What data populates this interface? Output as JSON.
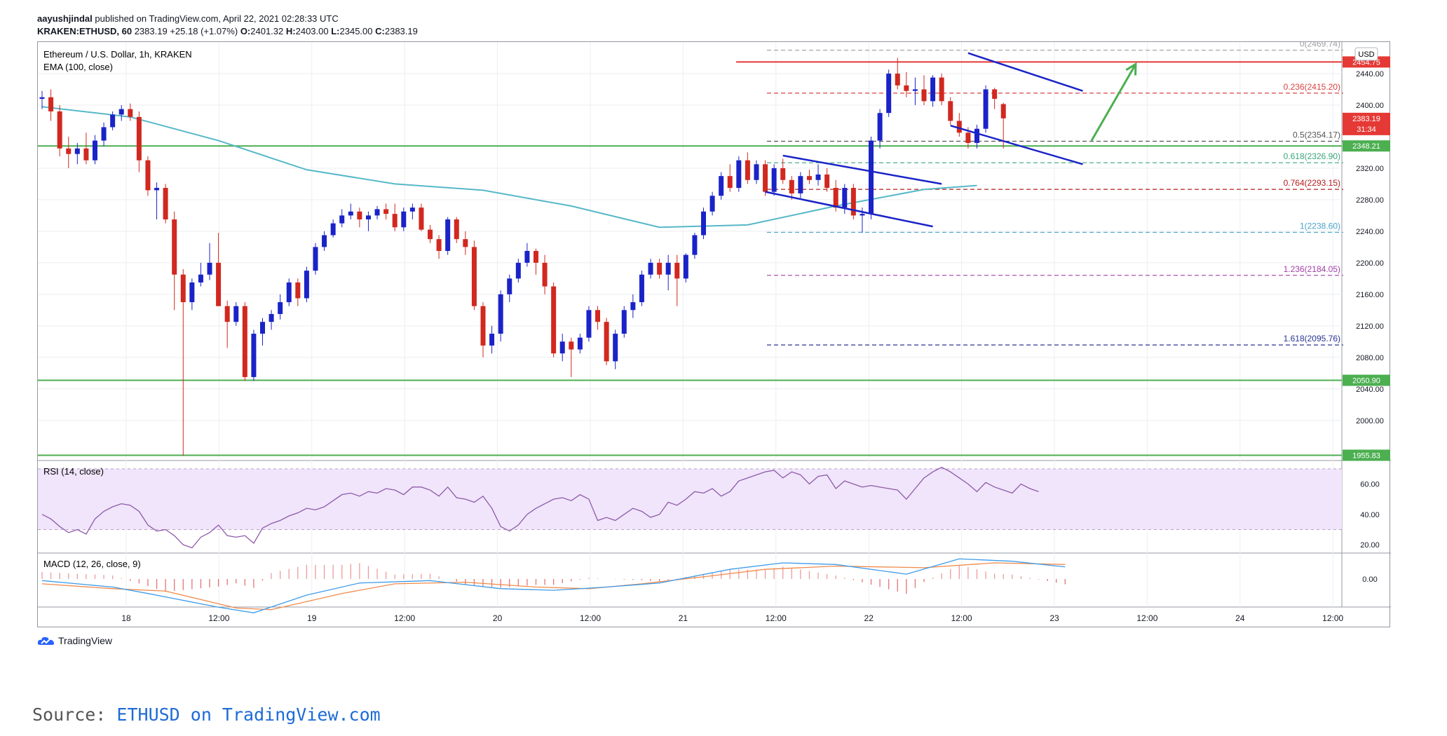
{
  "header": {
    "author": "aayushjindal",
    "published": "published on TradingView.com, April 22, 2021 02:28:33 UTC",
    "symbol": "KRAKEN:ETHUSD, 60",
    "last": "2383.19",
    "change": "+25.18 (+1.07%)",
    "o_label": "O:",
    "o": "2401.32",
    "h_label": "H:",
    "h": "2403.00",
    "l_label": "L:",
    "l": "2345.00",
    "c_label": "C:",
    "c": "2383.19"
  },
  "legend": {
    "title": "Ethereum / U.S. Dollar, 1h, KRAKEN",
    "ema": "EMA (100, close)",
    "rsi": "RSI (14, close)",
    "macd": "MACD (12, 26, close, 9)"
  },
  "currency_badge": "USD",
  "footer": {
    "brand": "TradingView",
    "source_prefix": "Source:",
    "source_link": "ETHUSD on TradingView.com"
  },
  "colors": {
    "up": "#1a23c7",
    "down": "#d1281f",
    "ema": "#56b8c8",
    "support": "#4caf50",
    "resistance": "#e53935",
    "channel": "#1a23c7",
    "arrow": "#4caf50",
    "rsi": "#8e5aa8",
    "macd": "#3d9be9",
    "signal": "#f08a4b"
  },
  "chart_data": {
    "type": "candlestick",
    "timeframe": "1h",
    "x_tick_labels": [
      "18",
      "12:00",
      "19",
      "12:00",
      "20",
      "12:00",
      "21",
      "12:00",
      "22",
      "12:00",
      "23",
      "12:00",
      "24",
      "12:00"
    ],
    "y_tick_labels": [
      "2440.00",
      "2400.00",
      "2320.00",
      "2280.00",
      "2240.00",
      "2200.00",
      "2160.00",
      "2120.00",
      "2080.00",
      "2040.00",
      "2000.00"
    ],
    "ylim": [
      1950,
      2480
    ],
    "price_tags": [
      {
        "label": "2454.75",
        "price": 2454.75,
        "color": "#e53935"
      },
      {
        "label": "2383.19",
        "price": 2383.19,
        "color": "#e53935",
        "sub": "31:34"
      },
      {
        "label": "2348.21",
        "price": 2348.21,
        "color": "#4caf50"
      },
      {
        "label": "2050.90",
        "price": 2050.9,
        "color": "#4caf50"
      },
      {
        "label": "1955.83",
        "price": 1955.83,
        "color": "#4caf50"
      }
    ],
    "horizontal_lines": [
      {
        "name": "resistance",
        "price": 2454.75
      },
      {
        "name": "support-1",
        "price": 2348.21
      },
      {
        "name": "support-2",
        "price": 2050.9
      },
      {
        "name": "support-3",
        "price": 1955.83
      }
    ],
    "fib_levels": [
      {
        "label": "0(2469.74)",
        "price": 2469.74,
        "color": "#9e9e9e"
      },
      {
        "label": "0.236(2415.20)",
        "price": 2415.2,
        "color": "#d84343"
      },
      {
        "label": "0.5(2354.17)",
        "price": 2354.17,
        "color": "#555555"
      },
      {
        "label": "0.618(2326.90)",
        "price": 2326.9,
        "color": "#3aa57a"
      },
      {
        "label": "0.764(2293.15)",
        "price": 2293.15,
        "color": "#b71c1c"
      },
      {
        "label": "1(2238.60)",
        "price": 2238.6,
        "color": "#4aa3c9"
      },
      {
        "label": "1.236(2184.05)",
        "price": 2184.05,
        "color": "#a23ea8"
      },
      {
        "label": "1.618(2095.76)",
        "price": 2095.76,
        "color": "#283593"
      }
    ],
    "candles_ohlc": [
      [
        2408,
        2418,
        2395,
        2410
      ],
      [
        2410,
        2420,
        2380,
        2392
      ],
      [
        2392,
        2400,
        2335,
        2345
      ],
      [
        2345,
        2360,
        2320,
        2338
      ],
      [
        2338,
        2352,
        2325,
        2345
      ],
      [
        2345,
        2365,
        2325,
        2330
      ],
      [
        2330,
        2362,
        2325,
        2355
      ],
      [
        2355,
        2378,
        2348,
        2372
      ],
      [
        2372,
        2392,
        2368,
        2388
      ],
      [
        2388,
        2400,
        2380,
        2395
      ],
      [
        2395,
        2402,
        2380,
        2385
      ],
      [
        2385,
        2392,
        2315,
        2330
      ],
      [
        2330,
        2335,
        2285,
        2292
      ],
      [
        2292,
        2302,
        2255,
        2295
      ],
      [
        2295,
        2300,
        2250,
        2255
      ],
      [
        2255,
        2265,
        2140,
        2185
      ],
      [
        2185,
        2192,
        1955,
        2150
      ],
      [
        2150,
        2180,
        2140,
        2175
      ],
      [
        2175,
        2200,
        2170,
        2185
      ],
      [
        2185,
        2225,
        2178,
        2200
      ],
      [
        2200,
        2238,
        2145,
        2145
      ],
      [
        2145,
        2152,
        2092,
        2125
      ],
      [
        2125,
        2150,
        2120,
        2145
      ],
      [
        2145,
        2150,
        2050,
        2055
      ],
      [
        2055,
        2115,
        2050,
        2110
      ],
      [
        2110,
        2130,
        2095,
        2125
      ],
      [
        2125,
        2140,
        2115,
        2135
      ],
      [
        2135,
        2160,
        2128,
        2150
      ],
      [
        2150,
        2180,
        2145,
        2175
      ],
      [
        2175,
        2180,
        2145,
        2155
      ],
      [
        2155,
        2195,
        2150,
        2190
      ],
      [
        2190,
        2225,
        2185,
        2220
      ],
      [
        2220,
        2240,
        2215,
        2235
      ],
      [
        2235,
        2255,
        2232,
        2250
      ],
      [
        2250,
        2268,
        2245,
        2260
      ],
      [
        2260,
        2275,
        2255,
        2265
      ],
      [
        2265,
        2270,
        2245,
        2255
      ],
      [
        2255,
        2265,
        2240,
        2260
      ],
      [
        2260,
        2272,
        2255,
        2268
      ],
      [
        2268,
        2275,
        2255,
        2262
      ],
      [
        2262,
        2275,
        2240,
        2245
      ],
      [
        2245,
        2270,
        2240,
        2265
      ],
      [
        2265,
        2275,
        2255,
        2270
      ],
      [
        2270,
        2275,
        2240,
        2242
      ],
      [
        2242,
        2248,
        2225,
        2230
      ],
      [
        2230,
        2235,
        2205,
        2215
      ],
      [
        2215,
        2258,
        2210,
        2255
      ],
      [
        2255,
        2258,
        2225,
        2230
      ],
      [
        2230,
        2240,
        2210,
        2220
      ],
      [
        2220,
        2228,
        2140,
        2145
      ],
      [
        2145,
        2150,
        2080,
        2095
      ],
      [
        2095,
        2120,
        2085,
        2110
      ],
      [
        2110,
        2165,
        2100,
        2160
      ],
      [
        2160,
        2185,
        2150,
        2180
      ],
      [
        2180,
        2205,
        2175,
        2200
      ],
      [
        2200,
        2225,
        2195,
        2215
      ],
      [
        2215,
        2218,
        2185,
        2200
      ],
      [
        2200,
        2210,
        2160,
        2170
      ],
      [
        2170,
        2175,
        2080,
        2085
      ],
      [
        2085,
        2110,
        2075,
        2100
      ],
      [
        2100,
        2105,
        2055,
        2090
      ],
      [
        2090,
        2110,
        2085,
        2105
      ],
      [
        2105,
        2145,
        2100,
        2140
      ],
      [
        2140,
        2145,
        2115,
        2125
      ],
      [
        2125,
        2130,
        2070,
        2075
      ],
      [
        2075,
        2115,
        2065,
        2110
      ],
      [
        2110,
        2145,
        2105,
        2140
      ],
      [
        2140,
        2160,
        2130,
        2150
      ],
      [
        2150,
        2190,
        2145,
        2185
      ],
      [
        2185,
        2205,
        2180,
        2200
      ],
      [
        2200,
        2205,
        2180,
        2185
      ],
      [
        2185,
        2210,
        2165,
        2200
      ],
      [
        2200,
        2210,
        2145,
        2180
      ],
      [
        2180,
        2212,
        2175,
        2210
      ],
      [
        2210,
        2238,
        2205,
        2235
      ],
      [
        2235,
        2270,
        2230,
        2265
      ],
      [
        2265,
        2290,
        2260,
        2285
      ],
      [
        2285,
        2315,
        2280,
        2310
      ],
      [
        2310,
        2325,
        2290,
        2295
      ],
      [
        2295,
        2335,
        2290,
        2330
      ],
      [
        2330,
        2340,
        2300,
        2305
      ],
      [
        2305,
        2330,
        2300,
        2325
      ],
      [
        2325,
        2330,
        2285,
        2290
      ],
      [
        2290,
        2325,
        2285,
        2320
      ],
      [
        2320,
        2332,
        2300,
        2305
      ],
      [
        2305,
        2310,
        2280,
        2288
      ],
      [
        2288,
        2315,
        2282,
        2310
      ],
      [
        2310,
        2318,
        2300,
        2305
      ],
      [
        2305,
        2325,
        2298,
        2312
      ],
      [
        2312,
        2320,
        2290,
        2295
      ],
      [
        2295,
        2305,
        2265,
        2270
      ],
      [
        2270,
        2300,
        2262,
        2295
      ],
      [
        2295,
        2300,
        2255,
        2260
      ],
      [
        2260,
        2270,
        2238,
        2262
      ],
      [
        2262,
        2360,
        2255,
        2355
      ],
      [
        2355,
        2395,
        2345,
        2390
      ],
      [
        2390,
        2445,
        2385,
        2440
      ],
      [
        2440,
        2460,
        2420,
        2425
      ],
      [
        2425,
        2442,
        2410,
        2418
      ],
      [
        2418,
        2435,
        2400,
        2420
      ],
      [
        2420,
        2438,
        2400,
        2405
      ],
      [
        2405,
        2438,
        2398,
        2435
      ],
      [
        2435,
        2440,
        2400,
        2405
      ],
      [
        2405,
        2410,
        2375,
        2380
      ],
      [
        2380,
        2390,
        2360,
        2365
      ],
      [
        2365,
        2372,
        2345,
        2352
      ],
      [
        2352,
        2375,
        2345,
        2370
      ],
      [
        2370,
        2425,
        2365,
        2420
      ],
      [
        2420,
        2422,
        2395,
        2408
      ],
      [
        2401.32,
        2403,
        2345,
        2383.19
      ]
    ],
    "ema_100": [
      [
        0,
        2398
      ],
      [
        10,
        2385
      ],
      [
        20,
        2355
      ],
      [
        30,
        2318
      ],
      [
        40,
        2300
      ],
      [
        50,
        2292
      ],
      [
        60,
        2272
      ],
      [
        70,
        2245
      ],
      [
        80,
        2248
      ],
      [
        90,
        2272
      ],
      [
        100,
        2293
      ],
      [
        106,
        2298
      ]
    ],
    "channel_lines": [
      {
        "from": [
          84,
          2336
        ],
        "to": [
          102,
          2300
        ]
      },
      {
        "from": [
          82,
          2290
        ],
        "to": [
          101,
          2246
        ]
      },
      {
        "from": [
          105,
          2466
        ],
        "to": [
          118,
          2418
        ]
      },
      {
        "from": [
          103,
          2374
        ],
        "to": [
          118,
          2325
        ]
      }
    ],
    "arrow": {
      "from": [
        119,
        2355
      ],
      "to": [
        124,
        2452
      ]
    },
    "rsi": {
      "ylim": [
        15,
        75
      ],
      "tick_labels": [
        "60.00",
        "40.00",
        "20.00"
      ],
      "band": [
        30,
        70
      ],
      "values": [
        40,
        37,
        32,
        28,
        30,
        27,
        37,
        42,
        45,
        47,
        46,
        42,
        33,
        29,
        30,
        26,
        20,
        18,
        25,
        28,
        33,
        26,
        25,
        26,
        21,
        31,
        34,
        36,
        39,
        41,
        44,
        43,
        45,
        49,
        53,
        54,
        52,
        55,
        54,
        57,
        56,
        53,
        58,
        58,
        56,
        52,
        58,
        51,
        50,
        48,
        52,
        44,
        32,
        29,
        33,
        40,
        44,
        47,
        50,
        51,
        49,
        53,
        50,
        36,
        38,
        36,
        40,
        44,
        42,
        38,
        40,
        48,
        46,
        50,
        55,
        54,
        57,
        52,
        55,
        62,
        64,
        66,
        68,
        69,
        64,
        68,
        66,
        60,
        65,
        66,
        57,
        62,
        60,
        58,
        59,
        58,
        57,
        56,
        50,
        57,
        64,
        68,
        71,
        68,
        64,
        60,
        55,
        61,
        58,
        56,
        54,
        60,
        57,
        55
      ]
    },
    "macd": {
      "zero_label": "0.00",
      "macd_line": [
        [
          0,
          -2
        ],
        [
          8,
          -10
        ],
        [
          12,
          -18
        ],
        [
          20,
          -35
        ],
        [
          24,
          -42
        ],
        [
          30,
          -20
        ],
        [
          36,
          -5
        ],
        [
          44,
          -2
        ],
        [
          52,
          -12
        ],
        [
          58,
          -14
        ],
        [
          64,
          -10
        ],
        [
          70,
          -5
        ],
        [
          78,
          12
        ],
        [
          84,
          20
        ],
        [
          90,
          18
        ],
        [
          98,
          6
        ],
        [
          104,
          25
        ],
        [
          110,
          22
        ],
        [
          116,
          15
        ]
      ],
      "signal_line": [
        [
          0,
          -6
        ],
        [
          8,
          -12
        ],
        [
          14,
          -15
        ],
        [
          22,
          -36
        ],
        [
          26,
          -38
        ],
        [
          34,
          -18
        ],
        [
          40,
          -6
        ],
        [
          48,
          -4
        ],
        [
          56,
          -10
        ],
        [
          62,
          -12
        ],
        [
          68,
          -6
        ],
        [
          76,
          4
        ],
        [
          82,
          12
        ],
        [
          90,
          16
        ],
        [
          100,
          14
        ],
        [
          108,
          20
        ],
        [
          116,
          18
        ]
      ]
    }
  }
}
